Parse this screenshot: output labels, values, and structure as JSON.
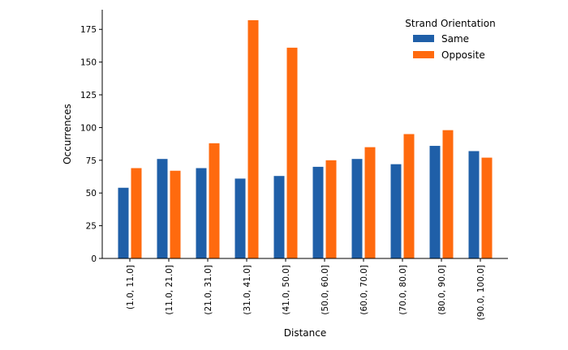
{
  "chart_data": {
    "type": "bar",
    "xlabel": "Distance",
    "ylabel": "Occurrences",
    "categories": [
      "(1.0, 11.0]",
      "(11.0, 21.0]",
      "(21.0, 31.0]",
      "(31.0, 41.0]",
      "(41.0, 50.0]",
      "(50.0, 60.0]",
      "(60.0, 70.0]",
      "(70.0, 80.0]",
      "(80.0, 90.0]",
      "(90.0, 100.0]"
    ],
    "series": [
      {
        "name": "Same",
        "color": "#1f5fa8",
        "values": [
          54,
          76,
          69,
          61,
          63,
          70,
          76,
          72,
          86,
          82
        ]
      },
      {
        "name": "Opposite",
        "color": "#ff6a0e",
        "values": [
          69,
          67,
          88,
          182,
          161,
          75,
          85,
          95,
          98,
          77
        ]
      }
    ],
    "ylim": [
      0,
      190
    ],
    "yticks": [
      0,
      25,
      50,
      75,
      100,
      125,
      150,
      175
    ],
    "legend": {
      "title": "Strand Orientation",
      "placement": "top-right"
    },
    "grid": false
  }
}
